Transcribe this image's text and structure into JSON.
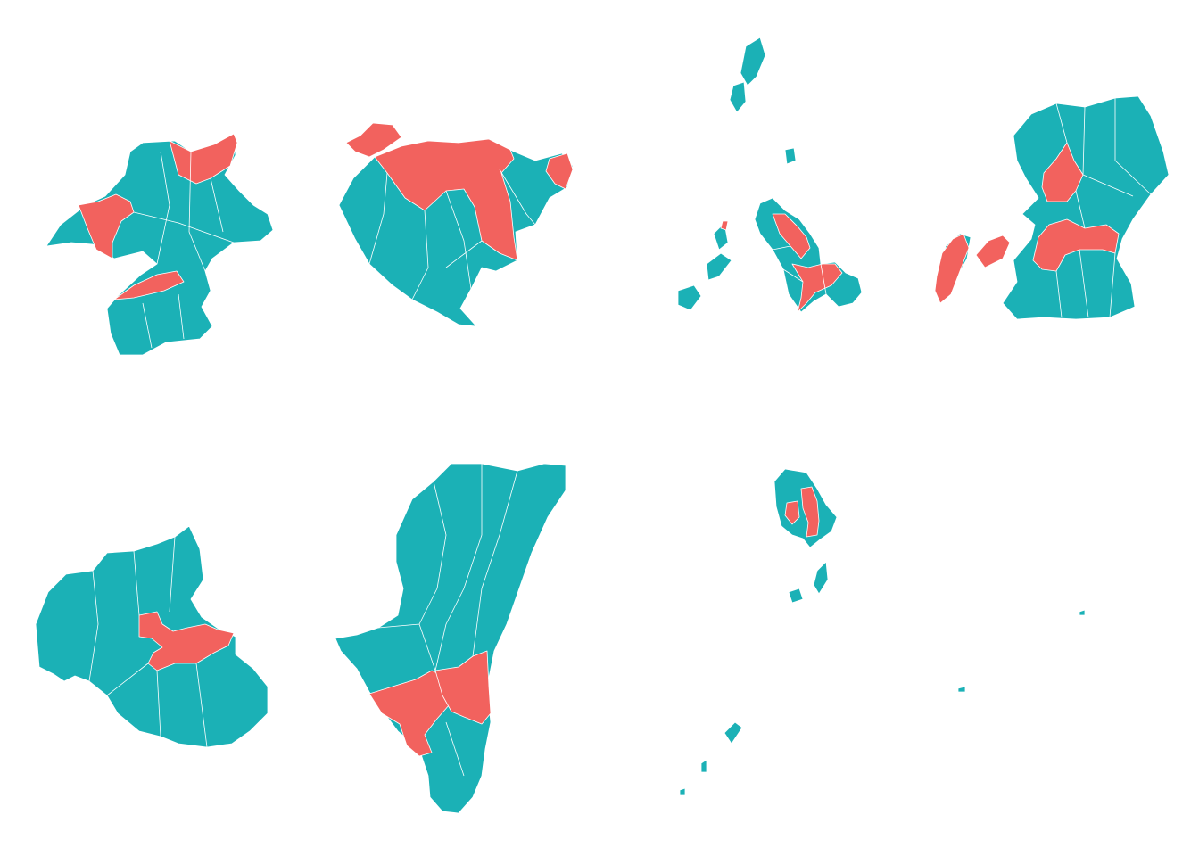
{
  "colors": {
    "background": "#ffffff",
    "region_default": "#1bb1b6",
    "region_highlight": "#f2625e",
    "border": "#ffffff"
  },
  "legend": null,
  "panels": [
    {
      "id": "prefecture-1",
      "highlighted_region_count": 3
    },
    {
      "id": "prefecture-2",
      "highlighted_region_count": 3
    },
    {
      "id": "prefecture-3",
      "highlighted_region_count": 3
    },
    {
      "id": "prefecture-4",
      "highlighted_region_count": 4
    },
    {
      "id": "prefecture-5",
      "highlighted_region_count": 2
    },
    {
      "id": "prefecture-6",
      "highlighted_region_count": 3
    },
    {
      "id": "prefecture-7",
      "highlighted_region_count": 2
    }
  ]
}
